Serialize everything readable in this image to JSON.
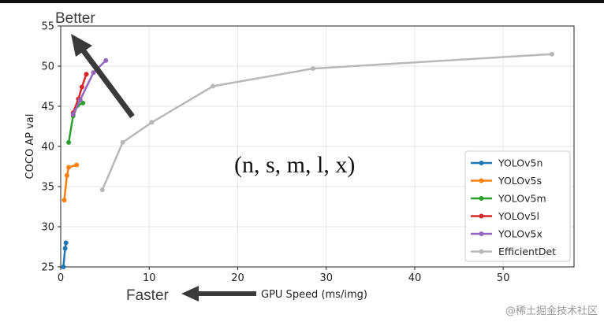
{
  "chart_data": {
    "type": "line",
    "title": "",
    "xlabel": "GPU Speed (ms/img)",
    "ylabel": "COCO AP val",
    "xlim": [
      0,
      58
    ],
    "ylim": [
      25,
      55
    ],
    "xticks": [
      0,
      10,
      20,
      30,
      40,
      50
    ],
    "yticks": [
      25,
      30,
      35,
      40,
      45,
      50,
      55
    ],
    "grid": true,
    "legend": "right",
    "series": [
      {
        "name": "YOLOv5n",
        "color": "#1f77b4",
        "x": [
          0.3,
          0.5,
          0.6
        ],
        "y": [
          25.0,
          27.3,
          28.0
        ]
      },
      {
        "name": "YOLOv5s",
        "color": "#ff7f0e",
        "x": [
          0.4,
          0.7,
          0.9,
          1.8
        ],
        "y": [
          33.3,
          36.4,
          37.4,
          37.7
        ]
      },
      {
        "name": "YOLOv5m",
        "color": "#2ca02c",
        "x": [
          0.9,
          1.4,
          1.9,
          2.5
        ],
        "y": [
          40.5,
          43.8,
          45.1,
          45.4
        ]
      },
      {
        "name": "YOLOv5l",
        "color": "#d62728",
        "x": [
          1.4,
          2.0,
          2.4,
          2.9
        ],
        "y": [
          44.2,
          45.9,
          47.4,
          49.0
        ]
      },
      {
        "name": "YOLOv5x",
        "color": "#9467bd",
        "x": [
          1.4,
          2.2,
          3.7,
          5.1
        ],
        "y": [
          44.0,
          45.8,
          49.2,
          50.7
        ]
      },
      {
        "name": "EfficientDet",
        "color": "#b8b8b8",
        "x": [
          4.7,
          7.0,
          10.3,
          17.2,
          28.5,
          55.5
        ],
        "y": [
          34.6,
          40.5,
          43.0,
          47.5,
          49.7,
          51.5
        ]
      }
    ],
    "annotations": {
      "better": "Better",
      "faster": "Faster",
      "variants": "(n, s, m, l, x)"
    }
  },
  "watermark": "@稀土掘金技术社区"
}
